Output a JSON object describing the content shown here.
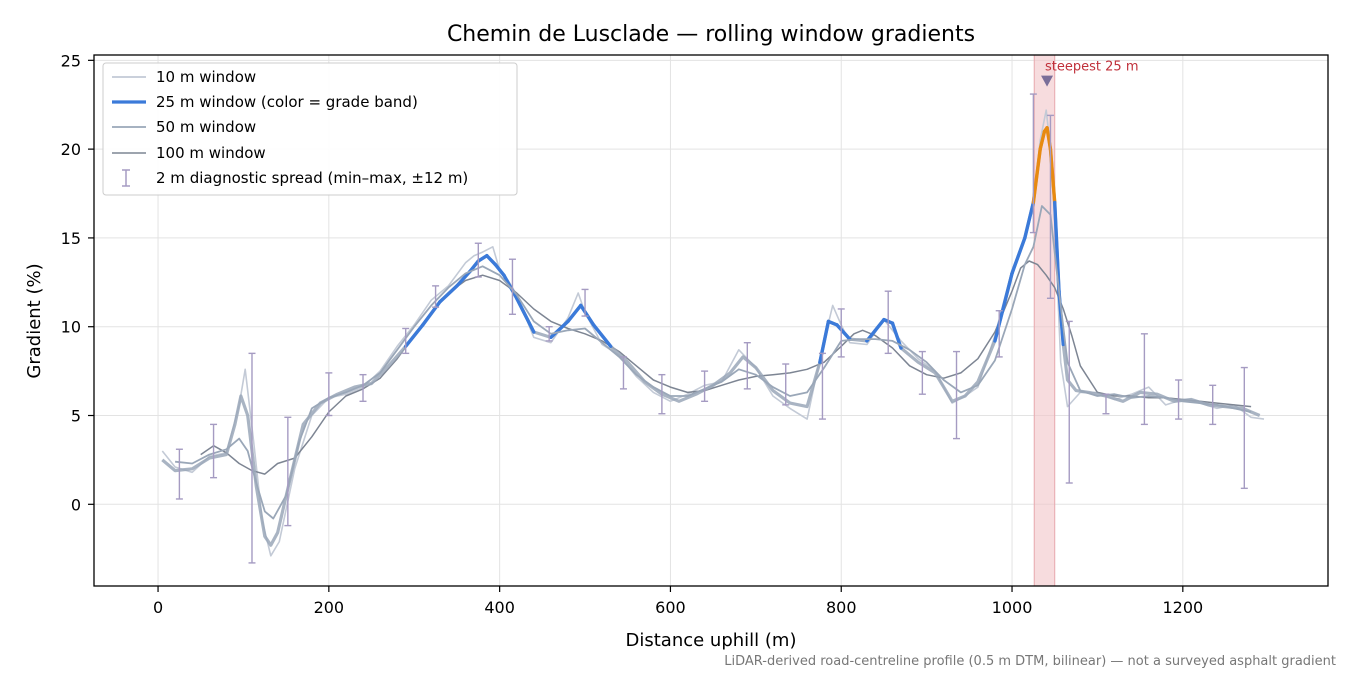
{
  "colors": {
    "w10": "#c3cad6",
    "w25": "#3b7ad9",
    "w25_steep": "#e88a10",
    "w50": "#9aa7b8",
    "w100": "#7d8593",
    "errorbar": "#a59bc2",
    "highlight": "#f2c4c8",
    "highlight_edge": "#e8a8ae",
    "marker": "#7a6e99",
    "grid": "#e3e3e3"
  },
  "chart_data": {
    "type": "line",
    "title": "Chemin de Lusclade — rolling window gradients",
    "xlabel": "Distance uphill (m)",
    "ylabel": "Gradient (%)",
    "xlim": [
      -75,
      1370
    ],
    "ylim": [
      -4.6,
      25.3
    ],
    "xticks": [
      0,
      200,
      400,
      600,
      800,
      1000,
      1200
    ],
    "yticks": [
      0,
      5,
      10,
      15,
      20,
      25
    ],
    "grid": true,
    "legend_position": "top-left",
    "steep_window": {
      "x_start": 1026,
      "x_end": 1050,
      "label": "steepest 25 m",
      "marker_x": 1041,
      "marker_y": 23.8
    },
    "grade_band_threshold": 20,
    "series": [
      {
        "name": "10 m window",
        "x": [
          5,
          20,
          40,
          60,
          80,
          95,
          102,
          112,
          122,
          132,
          142,
          160,
          180,
          200,
          220,
          240,
          260,
          280,
          300,
          320,
          340,
          360,
          370,
          380,
          392,
          400,
          410,
          420,
          440,
          460,
          480,
          492,
          500,
          520,
          540,
          560,
          580,
          600,
          620,
          640,
          660,
          680,
          700,
          720,
          740,
          760,
          775,
          790,
          800,
          810,
          830,
          850,
          870,
          890,
          910,
          930,
          945,
          960,
          980,
          1000,
          1015,
          1025,
          1033,
          1040,
          1045,
          1050,
          1057,
          1065,
          1080,
          1100,
          1120,
          1140,
          1160,
          1180,
          1200,
          1220,
          1240,
          1260,
          1280,
          1295
        ],
        "values": [
          3.0,
          2.1,
          1.8,
          2.7,
          2.9,
          5.6,
          7.6,
          3.5,
          -0.9,
          -2.9,
          -2.1,
          2.0,
          5.0,
          6.0,
          6.2,
          6.6,
          7.5,
          8.9,
          10.1,
          11.5,
          12.3,
          13.6,
          14.0,
          14.2,
          14.5,
          13.2,
          12.6,
          11.8,
          9.4,
          9.1,
          10.5,
          11.9,
          10.8,
          9.0,
          8.4,
          7.2,
          6.3,
          5.8,
          6.2,
          6.7,
          6.9,
          8.7,
          7.7,
          6.1,
          5.4,
          4.8,
          8.2,
          11.2,
          10.1,
          9.1,
          9.0,
          10.4,
          9.2,
          8.2,
          7.5,
          5.7,
          6.1,
          6.6,
          9.5,
          13.2,
          15.0,
          17.0,
          20.5,
          22.2,
          20.0,
          16.0,
          8.0,
          5.5,
          6.3,
          6.3,
          5.9,
          6.2,
          6.6,
          5.6,
          5.9,
          5.7,
          5.4,
          5.6,
          4.9,
          4.8
        ]
      },
      {
        "name": "25 m window (color = grade band)",
        "x": [
          5,
          20,
          40,
          60,
          80,
          90,
          97,
          105,
          115,
          125,
          132,
          140,
          155,
          170,
          190,
          210,
          230,
          250,
          270,
          290,
          310,
          330,
          350,
          365,
          375,
          385,
          395,
          405,
          420,
          440,
          460,
          480,
          495,
          510,
          530,
          550,
          570,
          590,
          610,
          630,
          650,
          670,
          685,
          700,
          720,
          740,
          760,
          775,
          785,
          795,
          810,
          830,
          850,
          860,
          870,
          890,
          910,
          930,
          945,
          960,
          980,
          1000,
          1015,
          1025,
          1033,
          1038,
          1041,
          1045,
          1050,
          1055,
          1060,
          1065,
          1075,
          1090,
          1110,
          1130,
          1150,
          1170,
          1190,
          1210,
          1230,
          1250,
          1270,
          1290
        ],
        "values": [
          2.5,
          1.9,
          2.0,
          2.6,
          2.8,
          4.5,
          6.1,
          5.0,
          1.0,
          -1.8,
          -2.3,
          -1.6,
          1.5,
          4.5,
          5.7,
          6.2,
          6.6,
          6.8,
          7.8,
          8.9,
          10.1,
          11.4,
          12.3,
          13.1,
          13.7,
          14.0,
          13.5,
          12.9,
          11.6,
          9.7,
          9.4,
          10.3,
          11.2,
          10.1,
          8.9,
          8.0,
          6.9,
          6.2,
          5.8,
          6.2,
          6.7,
          7.4,
          8.3,
          7.7,
          6.4,
          5.7,
          5.5,
          8.0,
          10.3,
          10.1,
          9.3,
          9.2,
          10.4,
          10.2,
          8.8,
          8.0,
          7.4,
          5.8,
          6.1,
          6.9,
          9.2,
          13.0,
          15.0,
          17.0,
          20.0,
          21.0,
          21.2,
          20.0,
          17.0,
          12.0,
          9.0,
          7.0,
          6.4,
          6.3,
          6.1,
          5.8,
          6.3,
          6.2,
          5.8,
          5.9,
          5.6,
          5.5,
          5.4,
          5.0
        ]
      },
      {
        "name": "50 m window",
        "x": [
          20,
          40,
          60,
          80,
          95,
          105,
          115,
          125,
          135,
          150,
          165,
          180,
          200,
          220,
          240,
          260,
          280,
          300,
          320,
          340,
          360,
          380,
          400,
          420,
          440,
          460,
          480,
          500,
          520,
          540,
          560,
          580,
          600,
          620,
          640,
          660,
          680,
          700,
          720,
          740,
          760,
          780,
          800,
          820,
          840,
          860,
          880,
          900,
          920,
          940,
          960,
          980,
          1000,
          1015,
          1025,
          1035,
          1045,
          1055,
          1065,
          1080,
          1100,
          1120,
          1140,
          1160,
          1180,
          1200,
          1220,
          1240,
          1260,
          1280
        ],
        "values": [
          2.4,
          2.3,
          2.8,
          3.1,
          3.7,
          3.0,
          1.2,
          -0.4,
          -0.8,
          0.5,
          3.5,
          5.4,
          6.0,
          6.3,
          6.7,
          7.4,
          8.7,
          10.0,
          11.2,
          12.2,
          13.0,
          13.4,
          12.9,
          11.8,
          10.3,
          9.6,
          9.8,
          9.9,
          9.1,
          8.3,
          7.3,
          6.6,
          6.1,
          6.1,
          6.5,
          6.9,
          7.6,
          7.3,
          6.6,
          6.1,
          6.3,
          7.7,
          9.2,
          9.3,
          9.3,
          9.2,
          8.7,
          8.0,
          7.0,
          6.3,
          6.7,
          8.1,
          11.0,
          13.5,
          14.5,
          16.8,
          16.3,
          12.0,
          8.0,
          6.4,
          6.1,
          6.2,
          6.0,
          6.1,
          6.0,
          5.8,
          5.7,
          5.6,
          5.4,
          5.2
        ]
      },
      {
        "name": "100 m window",
        "x": [
          50,
          65,
          80,
          95,
          110,
          125,
          140,
          160,
          180,
          200,
          220,
          240,
          260,
          280,
          300,
          320,
          340,
          360,
          380,
          400,
          420,
          440,
          460,
          480,
          500,
          520,
          540,
          560,
          580,
          600,
          620,
          640,
          660,
          680,
          700,
          720,
          740,
          760,
          780,
          800,
          815,
          825,
          840,
          860,
          880,
          900,
          920,
          940,
          960,
          980,
          1000,
          1010,
          1020,
          1030,
          1040,
          1050,
          1060,
          1070,
          1080,
          1100,
          1120,
          1140,
          1160,
          1180,
          1200,
          1220,
          1240,
          1260,
          1280
        ],
        "values": [
          2.8,
          3.3,
          2.9,
          2.3,
          1.9,
          1.7,
          2.3,
          2.6,
          3.8,
          5.2,
          6.1,
          6.5,
          7.1,
          8.2,
          9.5,
          10.8,
          11.9,
          12.6,
          12.9,
          12.6,
          11.9,
          11.0,
          10.3,
          9.9,
          9.6,
          9.2,
          8.6,
          7.8,
          7.0,
          6.6,
          6.3,
          6.4,
          6.7,
          7.0,
          7.2,
          7.3,
          7.4,
          7.6,
          8.0,
          8.9,
          9.6,
          9.8,
          9.5,
          8.8,
          7.8,
          7.3,
          7.1,
          7.4,
          8.2,
          9.7,
          12.0,
          13.3,
          13.7,
          13.5,
          12.9,
          12.2,
          11.0,
          9.5,
          7.8,
          6.3,
          6.1,
          6.1,
          6.0,
          6.0,
          5.9,
          5.8,
          5.7,
          5.6,
          5.5
        ]
      },
      {
        "name": "2 m diagnostic spread (min–max, ±12 m)",
        "x": [
          25,
          65,
          110,
          152,
          200,
          240,
          290,
          325,
          375,
          415,
          458,
          500,
          545,
          590,
          640,
          690,
          735,
          778,
          800,
          855,
          895,
          935,
          985,
          1025,
          1045,
          1067,
          1110,
          1155,
          1195,
          1235,
          1272
        ],
        "lower": [
          0.3,
          1.5,
          -3.3,
          -1.2,
          5.0,
          5.8,
          8.5,
          11.1,
          12.8,
          10.7,
          9.2,
          10.6,
          6.5,
          5.1,
          5.8,
          6.5,
          5.6,
          4.8,
          8.3,
          8.5,
          6.2,
          3.7,
          8.3,
          15.3,
          11.6,
          1.2,
          5.1,
          4.5,
          4.8,
          4.5,
          0.9
        ],
        "upper": [
          3.1,
          4.5,
          8.5,
          4.9,
          7.4,
          7.3,
          9.9,
          12.3,
          14.7,
          13.8,
          10.0,
          12.1,
          8.3,
          7.3,
          7.5,
          9.1,
          7.9,
          8.5,
          11.0,
          12.0,
          8.6,
          8.6,
          10.9,
          23.1,
          21.9,
          10.3,
          6.2,
          9.6,
          7.0,
          6.7,
          7.7
        ]
      }
    ],
    "annotation": "steepest 25 m",
    "footnote": "LiDAR-derived road-centreline profile (0.5 m DTM, bilinear) — not a surveyed asphalt gradient"
  }
}
